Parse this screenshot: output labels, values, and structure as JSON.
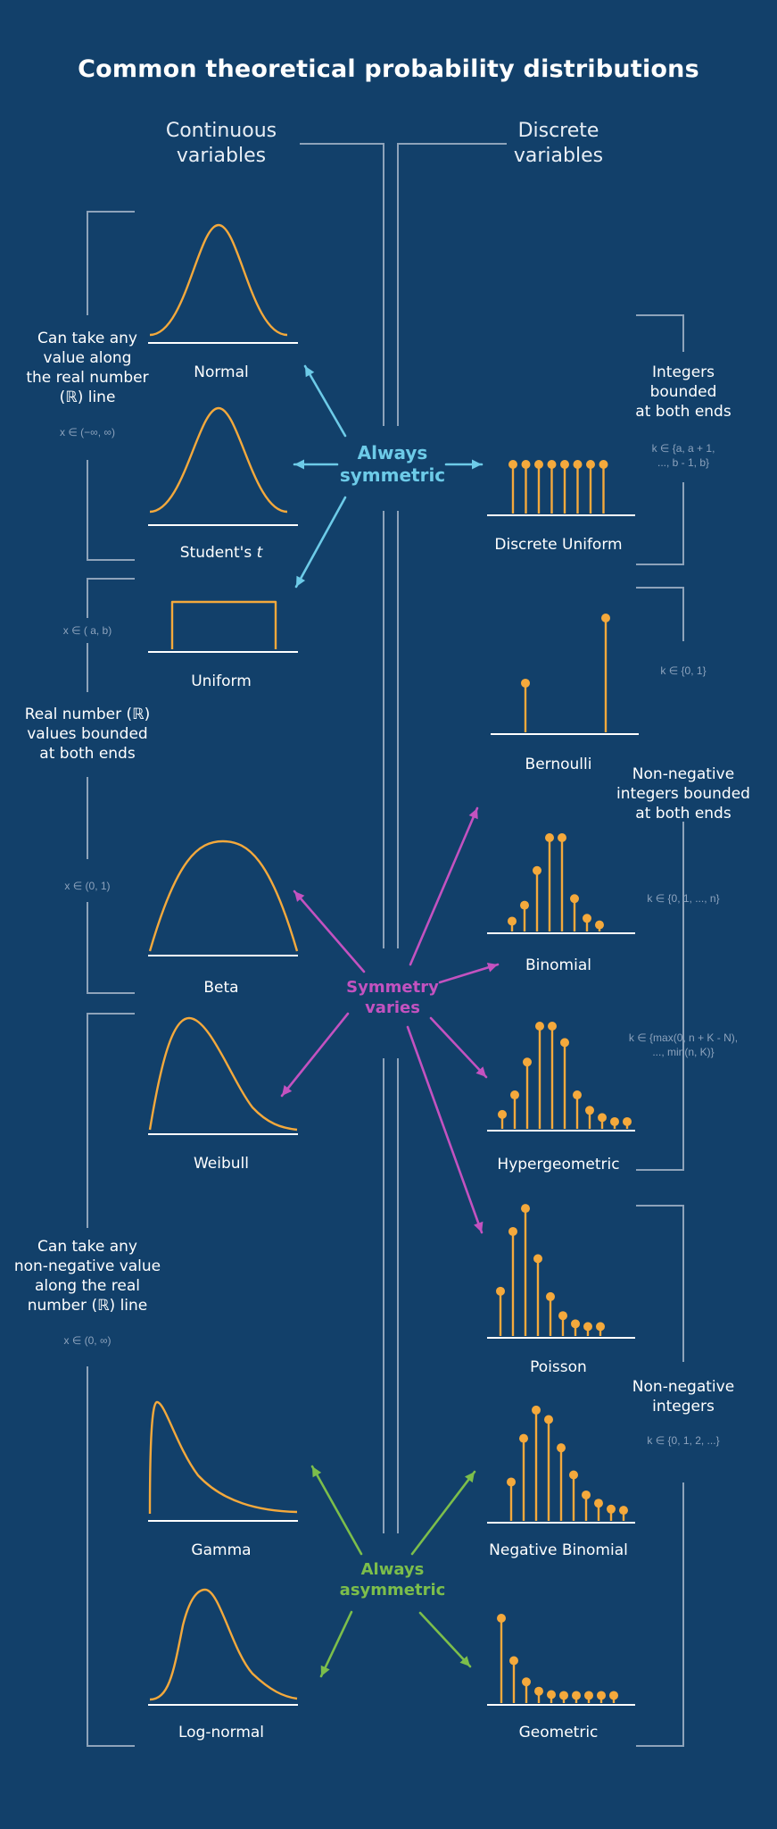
{
  "title": "Common theoretical probability distributions",
  "columns": {
    "continuous_line1": "Continuous",
    "continuous_line2": "variables",
    "discrete_line1": "Discrete",
    "discrete_line2": "variables"
  },
  "hubs": {
    "symmetric_line1": "Always",
    "symmetric_line2": "symmetric",
    "varies_line1": "Symmetry",
    "varies_line2": "varies",
    "asymmetric_line1": "Always",
    "asymmetric_line2": "asymmetric"
  },
  "continuous": {
    "normal": "Normal",
    "student_t": "Student's",
    "student_t_italic": "t",
    "uniform": "Uniform",
    "beta": "Beta",
    "weibull": "Weibull",
    "gamma": "Gamma",
    "lognormal": "Log-normal"
  },
  "discrete": {
    "discrete_uniform": "Discrete Uniform",
    "bernoulli": "Bernoulli",
    "binomial": "Binomial",
    "hypergeometric": "Hypergeometric",
    "poisson": "Poisson",
    "negative_binomial": "Negative Binomial",
    "geometric": "Geometric"
  },
  "left_groups": {
    "real_line": [
      "Can take any",
      "value along",
      "the real number",
      "(ℝ) line"
    ],
    "real_line_set": "x  ∈ (−∞, ∞)",
    "bounded": [
      "Real number (ℝ)",
      "values bounded",
      "at both ends"
    ],
    "bounded_set_ab": "x  ∈ ( a, b)",
    "bounded_set_01": "x  ∈ (0, 1)",
    "nonneg": [
      "Can take any",
      "non-negative value",
      "along the real",
      "number (ℝ) line"
    ],
    "nonneg_set": "x ∈ (0, ∞)"
  },
  "right_groups": {
    "int_bounded": [
      "Integers",
      "bounded",
      "at both ends"
    ],
    "int_bounded_set": [
      "k ∈ {a, a + 1,",
      "..., b - 1, b}"
    ],
    "bernoulli_set": "k ∈ {0, 1}",
    "nonneg_bounded": [
      "Non-negative",
      "integers bounded",
      "at both ends"
    ],
    "binomial_set": "k ∈ {0, 1, ..., n}",
    "hyper_set": [
      "k ∈ {max(0,  n + K - N),",
      "..., min(n, K)}"
    ],
    "nonneg_int": [
      "Non-negative",
      "integers"
    ],
    "nonneg_int_set": "k ∈ {0, 1, 2, ...}"
  },
  "stems": {
    "discrete_uniform": [
      1,
      1,
      1,
      1,
      1,
      1,
      1,
      1
    ],
    "bernoulli": [
      0.43,
      1.0
    ],
    "binomial": [
      0.11,
      0.28,
      0.65,
      1.0,
      1.0,
      0.35,
      0.14,
      0.07
    ],
    "hypergeometric": [
      0.14,
      0.33,
      0.65,
      1.0,
      1.0,
      0.84,
      0.33,
      0.18,
      0.11,
      0.07,
      0.07
    ],
    "poisson": [
      0.33,
      0.77,
      0.94,
      0.57,
      0.29,
      0.15,
      0.09,
      0.07,
      0.07
    ],
    "negative_binomial": [
      0.33,
      0.7,
      0.94,
      0.86,
      0.62,
      0.39,
      0.22,
      0.15,
      0.1,
      0.09
    ],
    "geometric": [
      1.0,
      0.5,
      0.25,
      0.14,
      0.1,
      0.09,
      0.09,
      0.09,
      0.09,
      0.09
    ]
  },
  "colors": {
    "background": "#12406a",
    "curve": "#f4a93c",
    "bracket": "#8ea3ba",
    "symmetric": "#6dcbe8",
    "varies": "#c352c0",
    "asymmetric": "#7cbe4b"
  }
}
